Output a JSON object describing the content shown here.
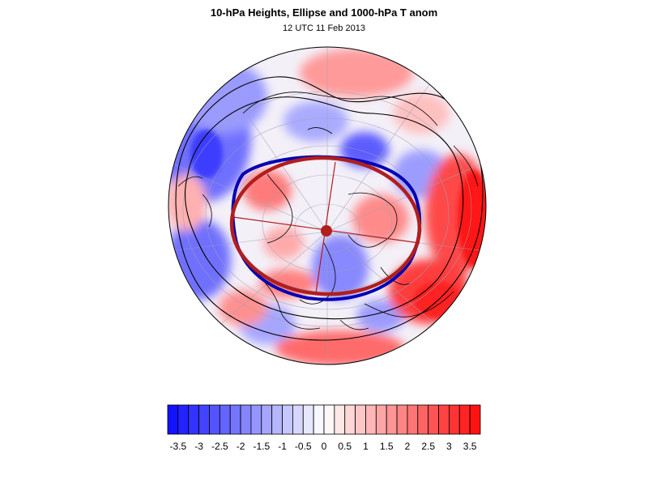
{
  "figure": {
    "title": "10-hPa Heights, Ellipse and 1000-hPa T anom",
    "subtitle": "12 UTC 11 Feb 2013"
  },
  "map": {
    "projection": "orthographic north-polar",
    "graticule": true,
    "fill_field": "1000-hPa T anom",
    "contour_field": "10-hPa Heights",
    "overlay": "ellipse",
    "colors": {
      "negative_max": "#0a0aff",
      "positive_max": "#ff0a0a",
      "ellipse": "#b01e1e",
      "height_contour": "#0000b4",
      "coastline": "#000000",
      "graticule": "#9aa0b4"
    }
  },
  "colorbar": {
    "min": -3.75,
    "max": 3.75,
    "step": 0.25,
    "tick_labels": [
      "-3.5",
      "-3",
      "-2.5",
      "-2",
      "-1.5",
      "-1",
      "-0.5",
      "0",
      "0.5",
      "1",
      "1.5",
      "2",
      "2.5",
      "3",
      "3.5"
    ],
    "tick_values": [
      -3.5,
      -3,
      -2.5,
      -2,
      -1.5,
      -1,
      -0.5,
      0,
      0.5,
      1,
      1.5,
      2,
      2.5,
      3,
      3.5
    ]
  }
}
